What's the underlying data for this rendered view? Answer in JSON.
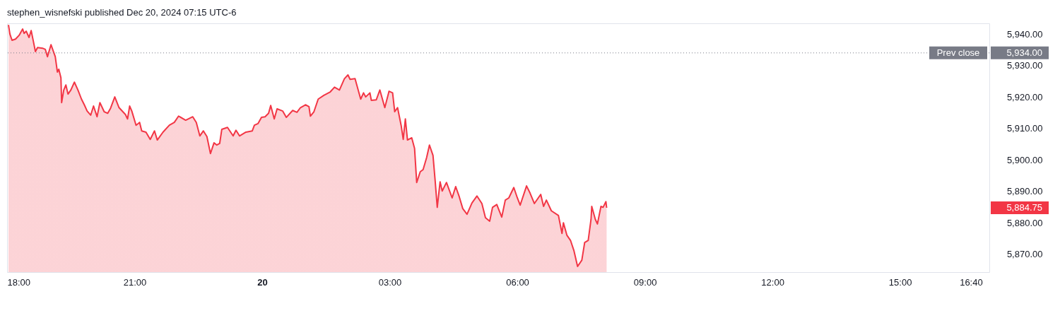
{
  "chart_data": {
    "type": "area",
    "title": "stephen_wisnefski published Dec 20, 2024 07:15 UTC-6",
    "xlim": [
      "2024-12-19T18:00",
      "2024-12-20T17:06"
    ],
    "xticks": [
      {
        "value": "2024-12-19T18:00",
        "label": "18:00"
      },
      {
        "value": "2024-12-19T21:00",
        "label": "21:00"
      },
      {
        "value": "2024-12-20T00:00",
        "label": "20"
      },
      {
        "value": "2024-12-20T03:00",
        "label": "03:00"
      },
      {
        "value": "2024-12-20T06:00",
        "label": "06:00"
      },
      {
        "value": "2024-12-20T09:00",
        "label": "09:00"
      },
      {
        "value": "2024-12-20T12:00",
        "label": "12:00"
      },
      {
        "value": "2024-12-20T15:00",
        "label": "15:00"
      },
      {
        "value": "2024-12-20T16:40",
        "label": "16:40"
      }
    ],
    "ylim": [
      5864.3,
      5943.4
    ],
    "yticks": [
      {
        "value": 5870,
        "label": "5,870.00"
      },
      {
        "value": 5880,
        "label": "5,880.00"
      },
      {
        "value": 5890,
        "label": "5,890.00"
      },
      {
        "value": 5900,
        "label": "5,900.00"
      },
      {
        "value": 5910,
        "label": "5,910.00"
      },
      {
        "value": 5920,
        "label": "5,920.00"
      },
      {
        "value": 5930,
        "label": "5,930.00"
      },
      {
        "value": 5940,
        "label": "5,940.00"
      }
    ],
    "ref_lines": [
      {
        "axis": "y",
        "value": 5934,
        "label": "Prev close",
        "color": "#787b86",
        "line_style": "dotted"
      }
    ],
    "annotations": [
      "5,934.00",
      "5,884.75"
    ],
    "series": [
      {
        "color": "#f23645",
        "x": [
          "2024-12-19T18:02",
          "2024-12-19T18:04",
          "2024-12-19T18:07",
          "2024-12-19T18:12",
          "2024-12-19T18:17",
          "2024-12-19T18:22",
          "2024-12-19T18:24",
          "2024-12-19T18:27",
          "2024-12-19T18:31",
          "2024-12-19T18:34",
          "2024-12-19T18:37",
          "2024-12-19T18:40",
          "2024-12-19T18:43",
          "2024-12-19T18:50",
          "2024-12-19T18:54",
          "2024-12-19T18:57",
          "2024-12-19T19:02",
          "2024-12-19T19:08",
          "2024-12-19T19:11",
          "2024-12-19T19:13",
          "2024-12-19T19:16",
          "2024-12-19T19:17",
          "2024-12-19T19:20",
          "2024-12-19T19:23",
          "2024-12-19T19:26",
          "2024-12-19T19:30",
          "2024-12-19T19:35",
          "2024-12-19T19:40",
          "2024-12-19T19:45",
          "2024-12-19T19:49",
          "2024-12-19T19:53",
          "2024-12-19T19:58",
          "2024-12-19T20:02",
          "2024-12-19T20:07",
          "2024-12-19T20:11",
          "2024-12-19T20:17",
          "2024-12-19T20:22",
          "2024-12-19T20:26",
          "2024-12-19T20:32",
          "2024-12-19T20:38",
          "2024-12-19T20:47",
          "2024-12-19T20:50",
          "2024-12-19T20:53",
          "2024-12-19T20:56",
          "2024-12-19T21:02",
          "2024-12-19T21:07",
          "2024-12-19T21:10",
          "2024-12-19T21:16",
          "2024-12-19T21:22",
          "2024-12-19T21:28",
          "2024-12-19T21:32",
          "2024-12-19T21:40",
          "2024-12-19T21:49",
          "2024-12-19T21:56",
          "2024-12-19T22:02",
          "2024-12-19T22:12",
          "2024-12-19T22:22",
          "2024-12-19T22:27",
          "2024-12-19T22:32",
          "2024-12-19T22:37",
          "2024-12-19T22:42",
          "2024-12-19T22:47",
          "2024-12-19T22:52",
          "2024-12-19T22:56",
          "2024-12-19T23:00",
          "2024-12-19T23:03",
          "2024-12-19T23:11",
          "2024-12-19T23:19",
          "2024-12-19T23:23",
          "2024-12-19T23:28",
          "2024-12-19T23:37",
          "2024-12-19T23:46",
          "2024-12-19T23:49",
          "2024-12-19T23:54",
          "2024-12-19T23:59",
          "2024-12-20T00:04",
          "2024-12-20T00:09",
          "2024-12-20T00:12",
          "2024-12-20T00:17",
          "2024-12-20T00:21",
          "2024-12-20T00:29",
          "2024-12-20T00:34",
          "2024-12-20T00:43",
          "2024-12-20T00:49",
          "2024-12-20T00:54",
          "2024-12-20T01:01",
          "2024-12-20T01:06",
          "2024-12-20T01:08",
          "2024-12-20T01:13",
          "2024-12-20T01:19",
          "2024-12-20T01:27",
          "2024-12-20T01:36",
          "2024-12-20T01:42",
          "2024-12-20T01:49",
          "2024-12-20T01:56",
          "2024-12-20T02:01",
          "2024-12-20T02:04",
          "2024-12-20T02:11",
          "2024-12-20T02:19",
          "2024-12-20T02:23",
          "2024-12-20T02:26",
          "2024-12-20T02:32",
          "2024-12-20T02:34",
          "2024-12-20T02:41",
          "2024-12-20T02:46",
          "2024-12-20T02:53",
          "2024-12-20T02:59",
          "2024-12-20T03:04",
          "2024-12-20T03:07",
          "2024-12-20T03:11",
          "2024-12-20T03:16",
          "2024-12-20T03:19",
          "2024-12-20T03:22",
          "2024-12-20T03:25",
          "2024-12-20T03:31",
          "2024-12-20T03:35",
          "2024-12-20T03:38",
          "2024-12-20T03:43",
          "2024-12-20T03:47",
          "2024-12-20T03:52",
          "2024-12-20T03:56",
          "2024-12-20T04:01",
          "2024-12-20T04:04",
          "2024-12-20T04:07",
          "2024-12-20T04:11",
          "2024-12-20T04:14",
          "2024-12-20T04:20",
          "2024-12-20T04:28",
          "2024-12-20T04:33",
          "2024-12-20T04:38",
          "2024-12-20T04:43",
          "2024-12-20T04:49",
          "2024-12-20T04:56",
          "2024-12-20T05:03",
          "2024-12-20T05:10",
          "2024-12-20T05:15",
          "2024-12-20T05:21",
          "2024-12-20T05:25",
          "2024-12-20T05:31",
          "2024-12-20T05:38",
          "2024-12-20T05:43",
          "2024-12-20T05:48",
          "2024-12-20T05:55",
          "2024-12-20T06:00",
          "2024-12-20T06:04",
          "2024-12-20T06:13",
          "2024-12-20T06:18",
          "2024-12-20T06:24",
          "2024-12-20T06:33",
          "2024-12-20T06:37",
          "2024-12-20T06:41",
          "2024-12-20T06:48",
          "2024-12-20T06:58",
          "2024-12-20T07:03",
          "2024-12-20T07:05",
          "2024-12-20T07:10",
          "2024-12-20T07:15",
          "2024-12-20T07:20",
          "2024-12-20T07:25",
          "2024-12-20T07:31",
          "2024-12-20T07:35",
          "2024-12-20T07:40",
          "2024-12-20T07:44",
          "2024-12-20T07:45",
          "2024-12-20T07:50",
          "2024-12-20T07:53",
          "2024-12-20T07:58",
          "2024-12-20T08:01",
          "2024-12-20T08:05",
          "2024-12-20T08:06"
        ],
        "values": [
          5942.9,
          5940.0,
          5938.0,
          5938.4,
          5939.6,
          5941.6,
          5940.2,
          5940.9,
          5938.9,
          5941.1,
          5937.8,
          5934.4,
          5935.7,
          5935.5,
          5935.1,
          5932.8,
          5936.6,
          5932.8,
          5927.9,
          5928.8,
          5926.1,
          5918.2,
          5922.2,
          5923.8,
          5920.9,
          5922.2,
          5924.7,
          5922.2,
          5919.3,
          5917.5,
          5915.5,
          5914.2,
          5917.1,
          5913.7,
          5918.2,
          5915.3,
          5914.8,
          5916.4,
          5920.0,
          5916.6,
          5914.4,
          5913.0,
          5917.1,
          5915.5,
          5911.0,
          5911.9,
          5909.2,
          5908.8,
          5906.5,
          5909.2,
          5906.3,
          5908.8,
          5911.0,
          5911.9,
          5913.9,
          5912.6,
          5913.7,
          5911.9,
          5907.6,
          5909.2,
          5907.4,
          5902.0,
          5905.4,
          5904.7,
          5905.2,
          5909.7,
          5910.3,
          5907.6,
          5909.4,
          5907.6,
          5908.8,
          5909.2,
          5911.0,
          5911.5,
          5913.5,
          5913.7,
          5914.8,
          5917.3,
          5913.0,
          5916.2,
          5915.5,
          5913.5,
          5915.7,
          5915.1,
          5916.6,
          5917.5,
          5916.9,
          5913.9,
          5915.3,
          5919.3,
          5920.5,
          5921.6,
          5923.1,
          5922.2,
          5925.8,
          5927.0,
          5925.6,
          5925.8,
          5919.3,
          5921.3,
          5920.0,
          5921.3,
          5918.9,
          5919.1,
          5922.2,
          5916.6,
          5921.8,
          5921.3,
          5915.3,
          5916.6,
          5911.0,
          5906.5,
          5913.0,
          5906.3,
          5907.0,
          5903.6,
          5892.8,
          5896.2,
          5896.9,
          5900.7,
          5904.7,
          5901.4,
          5893.5,
          5884.9,
          5893.0,
          5890.1,
          5892.8,
          5887.9,
          5891.5,
          5888.3,
          5884.5,
          5882.7,
          5886.3,
          5888.5,
          5886.1,
          5881.6,
          5880.5,
          5884.9,
          5885.8,
          5881.8,
          5887.2,
          5887.9,
          5891.2,
          5887.9,
          5885.6,
          5891.7,
          5889.4,
          5886.1,
          5889.0,
          5885.2,
          5887.2,
          5883.8,
          5882.3,
          5876.6,
          5880.0,
          5876.0,
          5874.4,
          5871.0,
          5866.1,
          5868.1,
          5873.7,
          5874.4,
          5881.1,
          5885.2,
          5881.1,
          5879.6,
          5885.2,
          5884.9,
          5886.7,
          5884.75
        ]
      }
    ]
  }
}
